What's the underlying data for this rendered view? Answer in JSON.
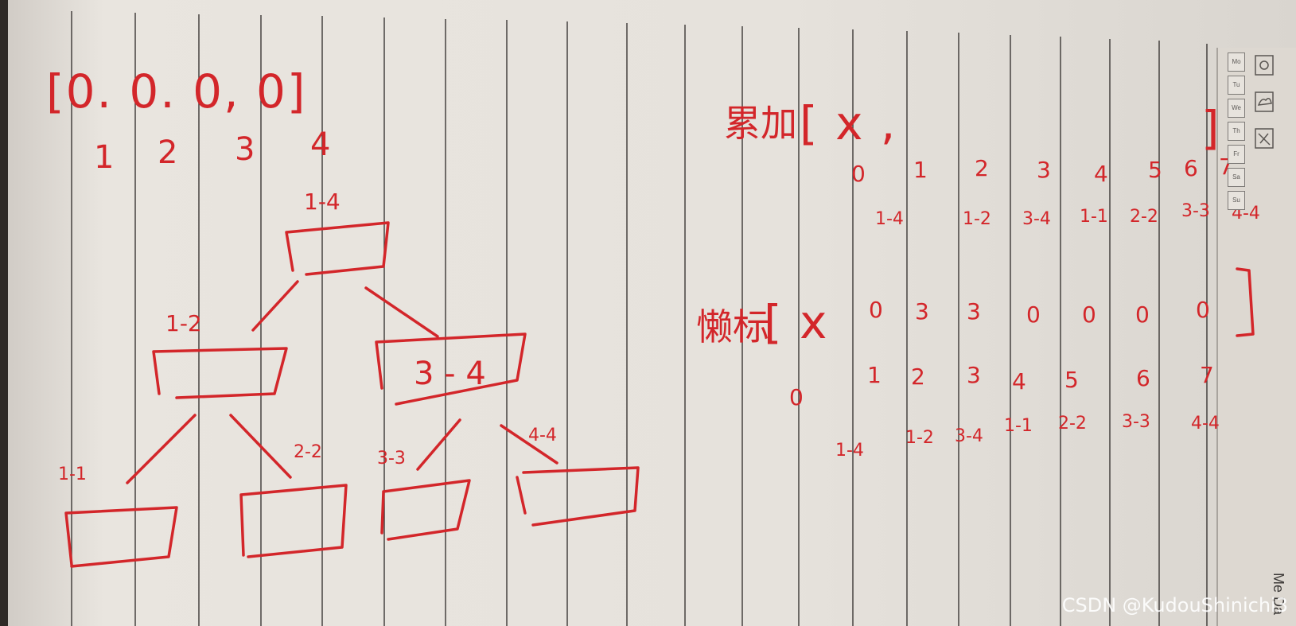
{
  "array_literal": "[0. 0. 0, 0]",
  "array_indices": [
    "1",
    "2",
    "3",
    "4"
  ],
  "tree": {
    "root_label": "1-4",
    "left_label": "1-2",
    "right_label": "3-4",
    "right_box_text": "3 - 4",
    "leaves": [
      "1-1",
      "2-2",
      "3-3",
      "4-4"
    ]
  },
  "accumulate": {
    "label": "累加",
    "bracket_open": "[ x ,",
    "bracket_close": "]",
    "indices": [
      "0",
      "1",
      "2",
      "3",
      "4",
      "5",
      "6",
      "7"
    ],
    "ranges": [
      "1-4",
      "1-2",
      "3-4",
      "1-1",
      "2-2",
      "3-3",
      "4-4"
    ]
  },
  "lazy": {
    "label": "懒标",
    "bracket_open": "[ x",
    "bracket_close": "]",
    "values": [
      "0",
      "3",
      "3",
      "0",
      "0",
      "0",
      "0"
    ],
    "indices": [
      "0",
      "1",
      "2",
      "3",
      "4",
      "5",
      "6",
      "7"
    ],
    "ranges": [
      "1-4",
      "1-2",
      "3-4",
      "1-1",
      "2-2",
      "3-3",
      "4-4"
    ]
  },
  "calendar_tabs": [
    "Mo",
    "Tu",
    "We",
    "Th",
    "Fr",
    "Sa",
    "Su"
  ],
  "margin_print": "Me Da",
  "watermark": "CSDN @KudouShinichi3",
  "colors": {
    "paper": "#e8e4de",
    "rule_line": "#3a3634",
    "ink": "#d3262a"
  }
}
